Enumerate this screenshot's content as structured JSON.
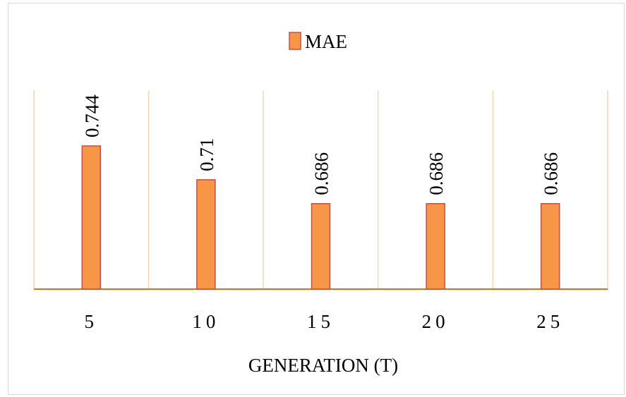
{
  "chart_data": {
    "type": "bar",
    "categories": [
      "5",
      "10",
      "15",
      "20",
      "25"
    ],
    "series": [
      {
        "name": "MAE",
        "values": [
          0.744,
          0.71,
          0.686,
          0.686,
          0.686
        ]
      }
    ],
    "data_labels": [
      "0.744",
      "0.71",
      "0.686",
      "0.686",
      "0.686"
    ],
    "title": "",
    "xlabel": "GENERATION (T)",
    "ylabel": "",
    "ylim": [
      0.6,
      0.8
    ],
    "legend_position": "top",
    "grid": "vertical",
    "colors": {
      "bar_fill": "#F79646",
      "bar_stroke": "#C0504D",
      "gridline": "#FBD4B4",
      "axis": "#E46C0A",
      "frame": "#D9D9D9"
    }
  }
}
